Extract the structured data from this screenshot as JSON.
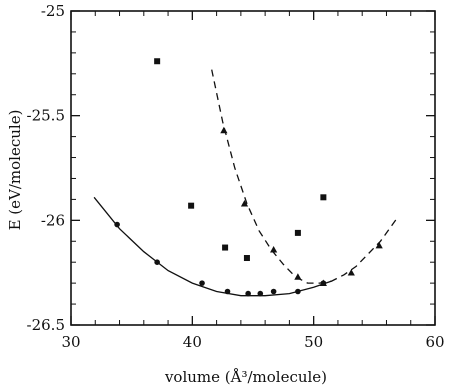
{
  "chart_data": {
    "type": "scatter",
    "xlabel": "volume (Å³/molecule)",
    "ylabel": "E (eV/molecule)",
    "xlim": [
      30,
      60
    ],
    "ylim": [
      -26.5,
      -25
    ],
    "x_ticks": [
      30,
      40,
      50,
      60
    ],
    "y_ticks": [
      -25,
      -25.5,
      -26,
      -26.5
    ],
    "x_tick_labels": [
      "30",
      "40",
      "50",
      "60"
    ],
    "y_tick_labels": [
      "-25",
      "-25.5",
      "-26",
      "-26.5"
    ],
    "grid": false,
    "series": [
      {
        "marker": "circle",
        "line": "solid",
        "points": [
          [
            33.8,
            -26.02
          ],
          [
            37.1,
            -26.2
          ],
          [
            40.8,
            -26.3
          ],
          [
            42.9,
            -26.34
          ],
          [
            44.6,
            -26.35
          ],
          [
            45.6,
            -26.35
          ],
          [
            46.7,
            -26.34
          ],
          [
            48.7,
            -26.34
          ],
          [
            50.8,
            -26.3
          ]
        ],
        "fit": [
          [
            31.9,
            -25.89
          ],
          [
            34,
            -26.04
          ],
          [
            36,
            -26.15
          ],
          [
            38,
            -26.24
          ],
          [
            40,
            -26.3
          ],
          [
            42,
            -26.34
          ],
          [
            44,
            -26.36
          ],
          [
            46,
            -26.36
          ],
          [
            48,
            -26.35
          ],
          [
            50,
            -26.32
          ],
          [
            51.5,
            -26.29
          ]
        ]
      },
      {
        "marker": "triangle",
        "line": "dashed",
        "points": [
          [
            42.6,
            -25.57
          ],
          [
            44.3,
            -25.92
          ],
          [
            46.7,
            -26.14
          ],
          [
            48.7,
            -26.27
          ],
          [
            50.8,
            -26.3
          ],
          [
            53.1,
            -26.25
          ],
          [
            55.4,
            -26.12
          ]
        ],
        "fit": [
          [
            41.6,
            -25.28
          ],
          [
            42.5,
            -25.53
          ],
          [
            43.5,
            -25.75
          ],
          [
            44.5,
            -25.92
          ],
          [
            45.5,
            -26.05
          ],
          [
            46.5,
            -26.14
          ],
          [
            47.5,
            -26.21
          ],
          [
            48.5,
            -26.27
          ],
          [
            49.5,
            -26.3
          ],
          [
            50.5,
            -26.3
          ],
          [
            51.5,
            -26.29
          ],
          [
            52.5,
            -26.26
          ],
          [
            53.5,
            -26.22
          ],
          [
            54.5,
            -26.16
          ],
          [
            55.5,
            -26.1
          ],
          [
            56.5,
            -26.02
          ],
          [
            57,
            -25.98
          ]
        ]
      },
      {
        "marker": "square",
        "line": "none",
        "points": [
          [
            37.1,
            -25.24
          ],
          [
            39.9,
            -25.93
          ],
          [
            42.7,
            -26.13
          ],
          [
            44.5,
            -26.18
          ],
          [
            48.7,
            -26.06
          ],
          [
            50.8,
            -25.89
          ]
        ]
      }
    ]
  }
}
